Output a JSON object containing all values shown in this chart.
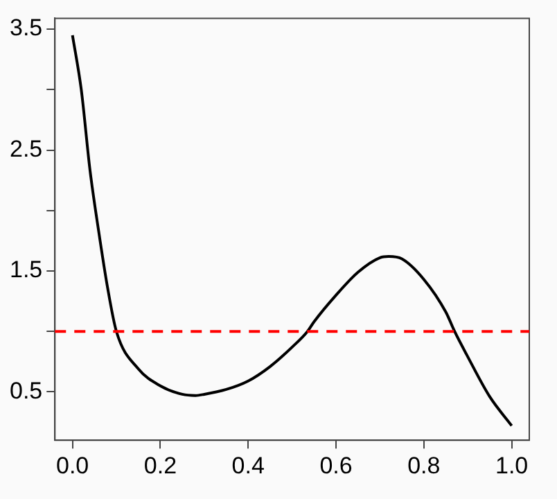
{
  "chart_data": {
    "type": "line",
    "x": [
      0,
      0.02,
      0.04,
      0.06,
      0.08,
      0.1,
      0.15,
      0.2,
      0.25,
      0.28,
      0.3,
      0.35,
      0.4,
      0.45,
      0.5,
      0.535,
      0.55,
      0.6,
      0.65,
      0.7,
      0.72,
      0.75,
      0.8,
      0.85,
      0.87,
      0.9,
      0.95,
      1.0
    ],
    "series": [
      {
        "color": "#000000",
        "values": [
          3.45,
          3.0,
          2.33,
          1.82,
          1.36,
          1.0,
          0.69,
          0.55,
          0.48,
          0.47,
          0.48,
          0.52,
          0.59,
          0.71,
          0.87,
          1.0,
          1.08,
          1.3,
          1.49,
          1.61,
          1.62,
          1.6,
          1.43,
          1.16,
          1.0,
          0.79,
          0.46,
          0.22
        ]
      }
    ],
    "xlim": [
      -0.04,
      1.04
    ],
    "xticks": [
      {
        "value": 0,
        "label": "0.0"
      },
      0.2,
      0.4,
      0.6,
      0.8,
      {
        "value": 1,
        "label": "1.0"
      }
    ],
    "ylim": [
      0.1,
      3.59
    ],
    "yticks": [
      0.5,
      {
        "value": 1,
        "label": null
      },
      1.5,
      {
        "value": 2,
        "label": null
      },
      2.5,
      {
        "value": 3,
        "label": null
      },
      3.5
    ],
    "ref_lines": [
      {
        "axis": "y",
        "value": 1,
        "color": "#ff0000",
        "line_style": "dashed"
      }
    ],
    "grid": false,
    "legend": false,
    "marker": "none",
    "line_style": "solid"
  }
}
